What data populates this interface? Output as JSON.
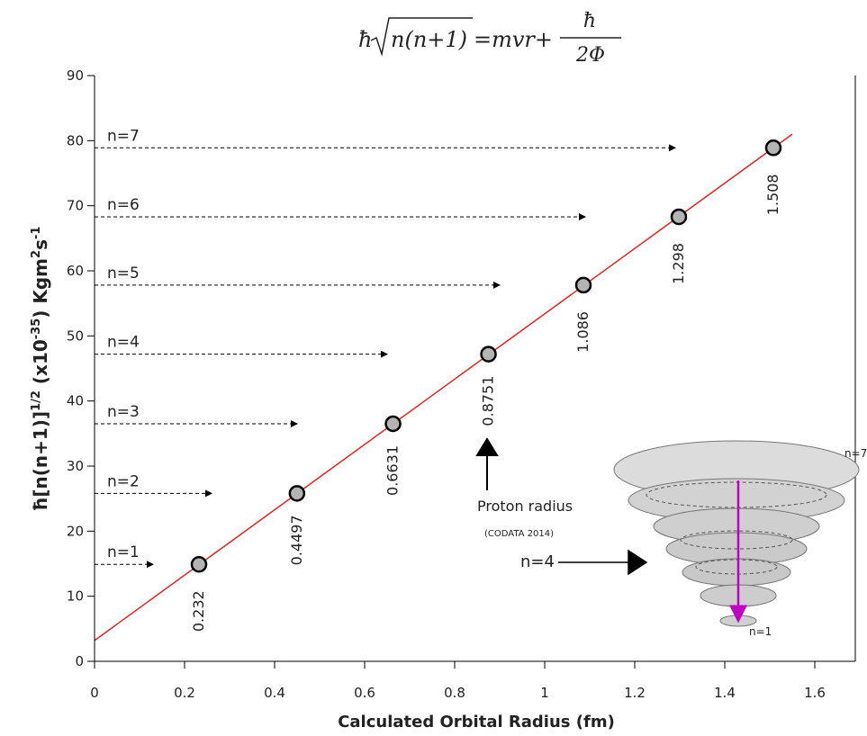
{
  "chart_data": {
    "type": "scatter",
    "title": {
      "hbar": "ħ",
      "radicand": "n(n+1)",
      "rhs": "=mvr+",
      "frac_num": "ħ",
      "frac_den": "2Φ"
    },
    "x_label": "Calculated Orbital Radius  (fm)",
    "y_label": {
      "a": "ħ",
      "b": "[n(n+1)]",
      "c": "1/2",
      "d": " (x10",
      "e": "-35",
      "f": ") Kgm",
      "g": "2",
      "h": "s",
      "i": "-1"
    },
    "x": [
      0.232,
      0.4497,
      0.6631,
      0.8751,
      1.086,
      1.298,
      1.508
    ],
    "series": [
      {
        "name": "ħ[n(n+1)]^1/2",
        "color": "#b4b4b4",
        "values": [
          14.9,
          25.8,
          36.5,
          47.2,
          57.8,
          68.3,
          78.9
        ]
      }
    ],
    "fit_line": {
      "x": [
        0,
        1.55
      ],
      "values": [
        3.2,
        81
      ],
      "color": "#e8221f"
    },
    "level_arrows": [
      {
        "label": "n=1",
        "x_end": 0.13
      },
      {
        "label": "n=2",
        "x_end": 0.26
      },
      {
        "label": "n=3",
        "x_end": 0.45
      },
      {
        "label": "n=4",
        "x_end": 0.65
      },
      {
        "label": "n=5",
        "x_end": 0.9
      },
      {
        "label": "n=6",
        "x_end": 1.09
      },
      {
        "label": "n=7",
        "x_end": 1.29
      }
    ],
    "annotations": {
      "proton": "Proton radius",
      "codata": "(CODATA 2014)",
      "n4": "n=4",
      "inset_top": "n=7",
      "inset_bottom": "n=1"
    },
    "xlim": [
      0,
      1.69
    ],
    "ylim": [
      0,
      90
    ],
    "xticks": [
      0,
      0.2,
      0.4,
      0.6,
      0.8,
      1,
      1.2,
      1.4,
      1.6
    ],
    "yticks": [
      0,
      10,
      20,
      30,
      40,
      50,
      60,
      70,
      80,
      90
    ]
  }
}
